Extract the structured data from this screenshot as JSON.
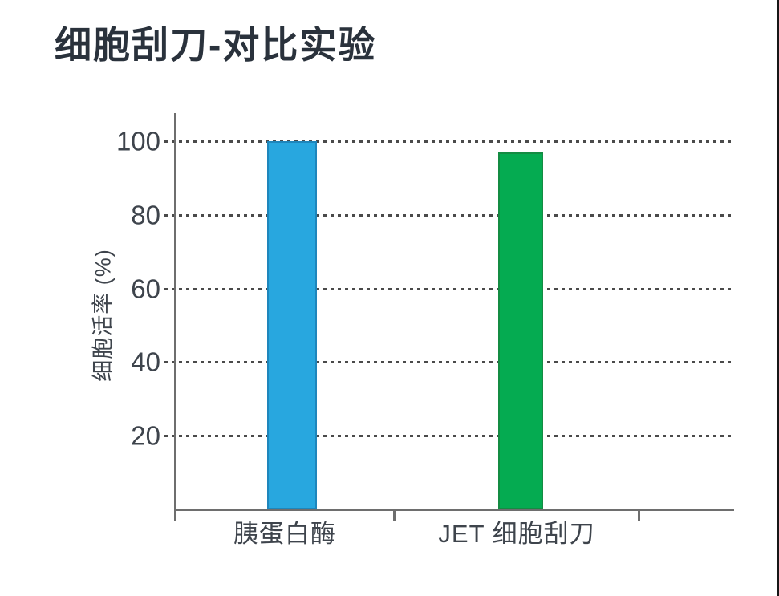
{
  "page": {
    "title": "细胞刮刀-对比实验"
  },
  "chart_data": {
    "type": "bar",
    "title": "细胞刮刀-对比实验",
    "xlabel": "",
    "ylabel": "细胞活率 (%)",
    "categories": [
      "胰蛋白酶",
      "JET 细胞刮刀"
    ],
    "values": [
      100,
      97
    ],
    "yticks": [
      100,
      80,
      60,
      40,
      20
    ],
    "ylim": [
      0,
      108
    ],
    "grid": "horizontal-dotted",
    "legend_position": "none",
    "colors": {
      "bar_fills": [
        "#28A7DF",
        "#05AB51"
      ],
      "bar_borders": [
        "#1E86BC",
        "#148C43"
      ],
      "axis": "#6E6E6E",
      "gridline": "#4A4A4A",
      "tick_text": "#3E444C",
      "title_text": "#2A323C"
    }
  }
}
